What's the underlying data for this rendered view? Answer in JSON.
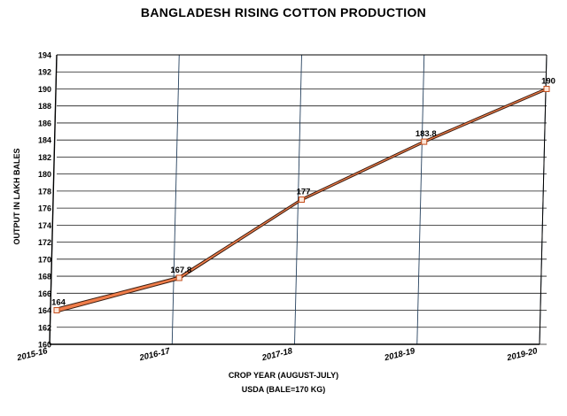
{
  "chart_data": {
    "type": "line",
    "title": "BANGLADESH RISING COTTON PRODUCTION",
    "xlabel": "CROP YEAR (AUGUST-JULY)",
    "ylabel": "OUTPUT IN LAKH BALES",
    "source_note": "USDA (BALE=170 KG)",
    "categories": [
      "2015-16",
      "2016-17",
      "2017-18",
      "2018-19",
      "2019-20"
    ],
    "series": [
      {
        "values": [
          164,
          167.8,
          177,
          183.8,
          190
        ],
        "data_labels": [
          "164",
          "167.8",
          "177",
          "183.8",
          "190"
        ],
        "color": "#f07d4a"
      }
    ],
    "ylim": [
      160,
      194
    ],
    "yticks": [
      160,
      162,
      164,
      166,
      168,
      170,
      172,
      174,
      176,
      178,
      180,
      182,
      184,
      186,
      188,
      190,
      192,
      194
    ],
    "grid": true,
    "legend": "none"
  }
}
